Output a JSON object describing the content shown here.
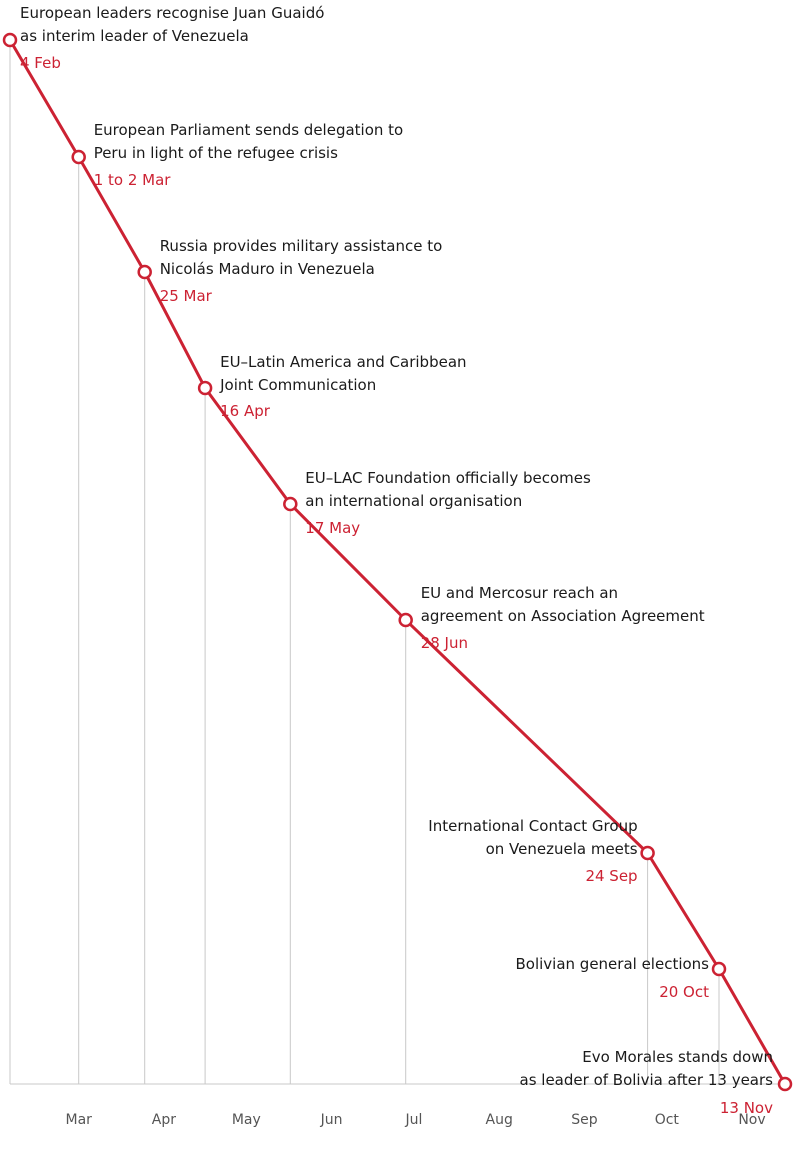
{
  "chart_data": {
    "type": "timeline",
    "colors": {
      "accent": "#cc2233",
      "guide": "#c8c8c8",
      "text": "#1a1a1a",
      "axis_text": "#555555"
    },
    "months": [
      "Mar",
      "Apr",
      "May",
      "Jun",
      "Jul",
      "Aug",
      "Sep",
      "Oct",
      "Nov"
    ],
    "events": [
      {
        "date_label": "4 Feb",
        "date": "2019-02-04",
        "title": [
          "European leaders recognise Juan Guaidó",
          "as interim leader of Venezuela"
        ]
      },
      {
        "date_label": "1 to 2 Mar",
        "date": "2019-03-01",
        "title": [
          "European Parliament sends delegation to",
          "Peru in light of the refugee crisis"
        ]
      },
      {
        "date_label": "25 Mar",
        "date": "2019-03-25",
        "title": [
          "Russia provides military assistance to",
          "Nicolás Maduro in Venezuela"
        ]
      },
      {
        "date_label": "16 Apr",
        "date": "2019-04-16",
        "title": [
          "EU–Latin America and Caribbean",
          "Joint Communication"
        ]
      },
      {
        "date_label": "17 May",
        "date": "2019-05-17",
        "title": [
          "EU–LAC Foundation officially becomes",
          "an international organisation"
        ]
      },
      {
        "date_label": "28 Jun",
        "date": "2019-06-28",
        "title": [
          "EU and Mercosur reach an",
          "agreement on Association Agreement"
        ]
      },
      {
        "date_label": "24 Sep",
        "date": "2019-09-24",
        "title": [
          "International Contact Group",
          "on Venezuela meets"
        ]
      },
      {
        "date_label": "20 Oct",
        "date": "2019-10-20",
        "title": [
          "Bolivian general elections"
        ]
      },
      {
        "date_label": "13 Nov",
        "date": "2019-11-13",
        "title": [
          "Evo Morales stands down",
          "as leader of Bolivia after 13 years"
        ]
      }
    ]
  }
}
